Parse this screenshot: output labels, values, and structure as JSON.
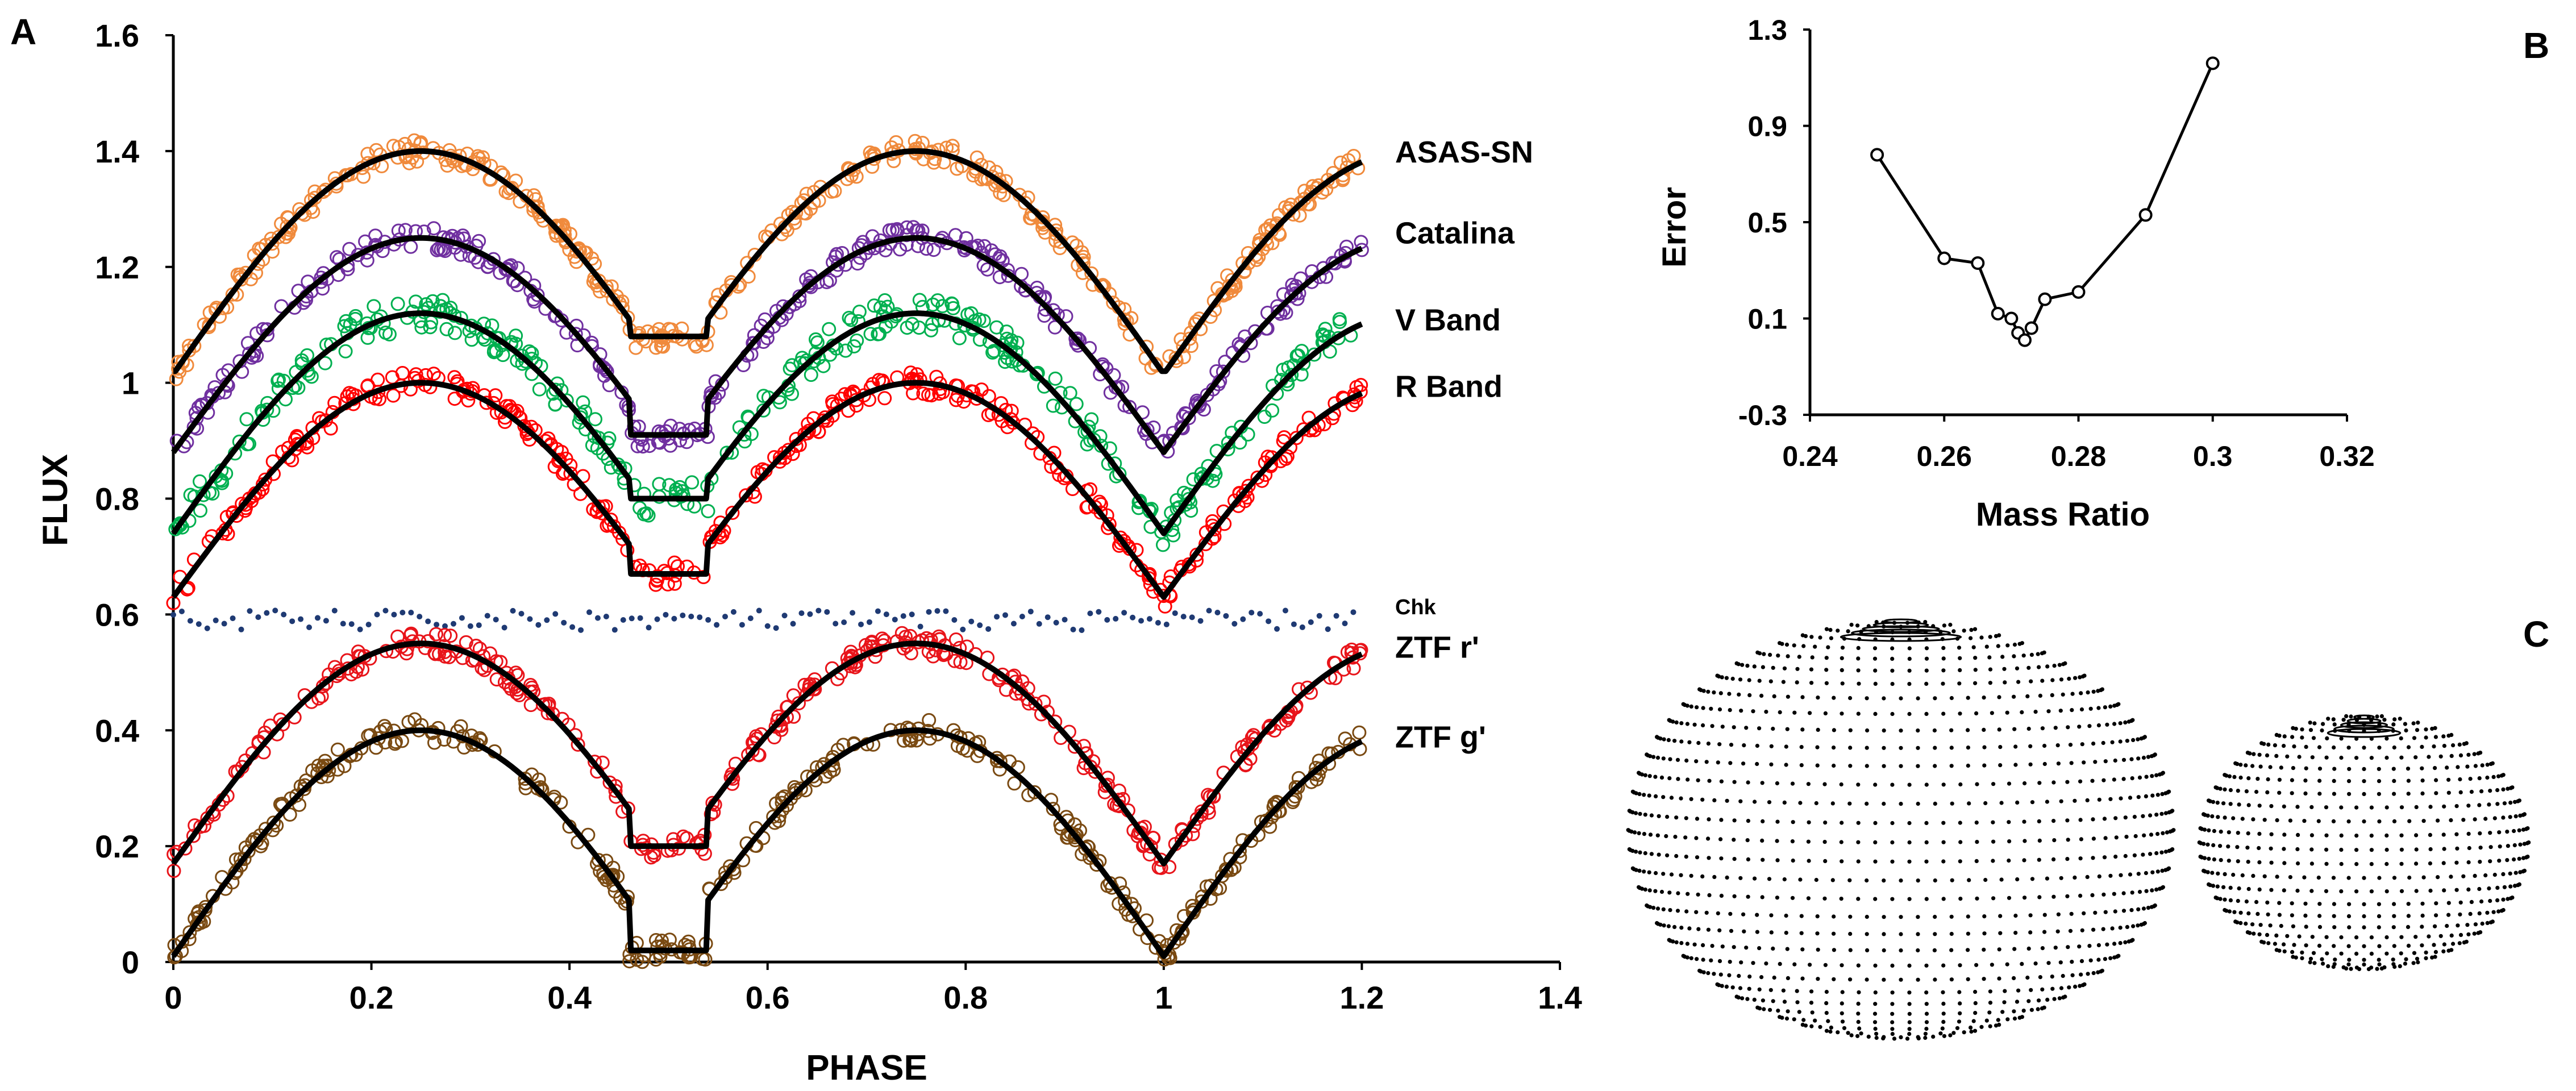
{
  "panel_labels": {
    "a": "A",
    "b": "B",
    "c": "C"
  },
  "colors": {
    "asas_sn": "#f08a3c",
    "catalina": "#7030a0",
    "v_band": "#00b050",
    "r_band": "#ff0000",
    "chk": "#1f3a73",
    "ztf_r": "#e8141a",
    "ztf_g": "#7a4a12",
    "model": "#000000"
  },
  "chart_data": [
    {
      "type": "scatter",
      "panel": "A",
      "xlabel": "PHASE",
      "ylabel": "FLUX",
      "xlim": [
        0,
        1.4
      ],
      "ylim": [
        0,
        1.6
      ],
      "xticks": [
        "0",
        "0.2",
        "0.4",
        "0.6",
        "0.8",
        "1",
        "1.2",
        "1.4"
      ],
      "yticks": [
        "0",
        "0.2",
        "0.4",
        "0.6",
        "0.8",
        "1",
        "1.2",
        "1.4",
        "1.6"
      ],
      "phase_range": [
        0,
        1.2
      ],
      "series": [
        {
          "name": "ASAS-SN",
          "label_y": 1.4,
          "base": 1.4,
          "amp": 0.385,
          "eclipse_floor_primary": 1.02,
          "eclipse_floor_secondary": 1.08,
          "marker": "open-circle",
          "color_key": "asas_sn"
        },
        {
          "name": "Catalina",
          "label_y": 1.26,
          "base": 1.25,
          "amp": 0.37,
          "eclipse_floor_primary": 0.88,
          "eclipse_floor_secondary": 0.91,
          "marker": "open-circle",
          "color_key": "catalina"
        },
        {
          "name": "V Band",
          "label_y": 1.11,
          "base": 1.12,
          "amp": 0.38,
          "eclipse_floor_primary": 0.74,
          "eclipse_floor_secondary": 0.8,
          "marker": "open-circle",
          "color_key": "v_band"
        },
        {
          "name": "R Band",
          "label_y": 0.995,
          "base": 1.0,
          "amp": 0.37,
          "eclipse_floor_primary": 0.63,
          "eclipse_floor_secondary": 0.67,
          "marker": "open-circle",
          "color_key": "r_band"
        },
        {
          "name": "Chk",
          "label_y": 0.62,
          "base": 0.59,
          "amp": 0.0,
          "marker": "dot",
          "color_key": "chk"
        },
        {
          "name": "ZTF r'",
          "label_y": 0.545,
          "base": 0.55,
          "amp": 0.38,
          "eclipse_floor_primary": 0.17,
          "eclipse_floor_secondary": 0.2,
          "marker": "open-circle",
          "color_key": "ztf_r"
        },
        {
          "name": "ZTF g'",
          "label_y": 0.39,
          "base": 0.4,
          "amp": 0.39,
          "eclipse_floor_primary": 0.0,
          "eclipse_floor_secondary": 0.02,
          "marker": "open-circle",
          "color_key": "ztf_g"
        }
      ]
    },
    {
      "type": "line",
      "panel": "B",
      "xlabel": "Mass Ratio",
      "ylabel": "Error",
      "xlim": [
        0.24,
        0.32
      ],
      "ylim": [
        -0.3,
        1.3
      ],
      "xticks": [
        "0.24",
        "0.26",
        "0.28",
        "0.3",
        "0.32"
      ],
      "yticks": [
        "-0.3",
        "0.1",
        "0.5",
        "0.9",
        "1.3"
      ],
      "x": [
        0.25,
        0.26,
        0.265,
        0.268,
        0.27,
        0.271,
        0.272,
        0.273,
        0.275,
        0.28,
        0.29,
        0.3
      ],
      "y": [
        0.78,
        0.35,
        0.33,
        0.12,
        0.1,
        0.04,
        0.01,
        0.06,
        0.18,
        0.21,
        0.53,
        1.16
      ]
    },
    {
      "type": "other",
      "panel": "C",
      "description_key": "star-models"
    }
  ]
}
